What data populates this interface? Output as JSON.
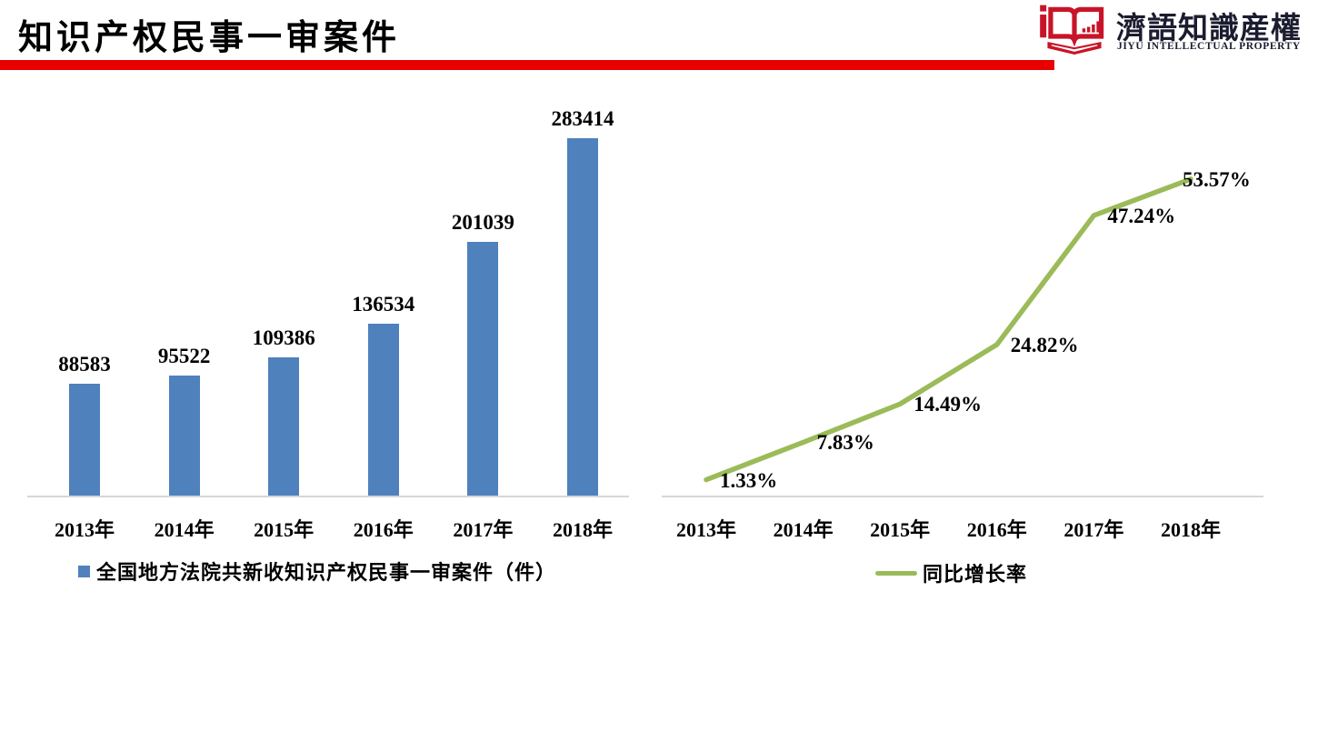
{
  "header": {
    "title": "知识产权民事一审案件",
    "accent_color": "#e80000",
    "logo": {
      "name_cn": "濟語知識産權",
      "name_en": "JIYU INTELLECTUAL PROPERTY",
      "icon": "open-book-icon",
      "icon_color": "#c81428",
      "text_color": "#1c1c30"
    }
  },
  "chart_data": [
    {
      "type": "bar",
      "title": "",
      "categories": [
        "2013年",
        "2014年",
        "2015年",
        "2016年",
        "2017年",
        "2018年"
      ],
      "values": [
        88583,
        95522,
        109386,
        136534,
        201039,
        283414
      ],
      "data_labels": [
        "88583",
        "95522",
        "109386",
        "136534",
        "201039",
        "283414"
      ],
      "series_name": "全国地方法院共新收知识产权民事一审案件（件）",
      "bar_color": "#4f81bd",
      "axis_color": "#d6d6d6",
      "xlabel": "",
      "ylabel": "",
      "ylim": [
        0,
        300000
      ],
      "grid": false,
      "legend_position": "bottom"
    },
    {
      "type": "line",
      "title": "",
      "categories": [
        "2013年",
        "2014年",
        "2015年",
        "2016年",
        "2017年",
        "2018年"
      ],
      "values": [
        1.33,
        7.83,
        14.49,
        24.82,
        47.24,
        53.57
      ],
      "data_labels": [
        "1.33%",
        "7.83%",
        "14.49%",
        "24.82%",
        "47.24%",
        "53.57%"
      ],
      "series_name": "同比增长率",
      "line_color": "#9bbb59",
      "axis_color": "#d6d6d6",
      "xlabel": "",
      "ylabel": "",
      "ylim": [
        0,
        60
      ],
      "grid": false,
      "legend_position": "bottom"
    }
  ]
}
